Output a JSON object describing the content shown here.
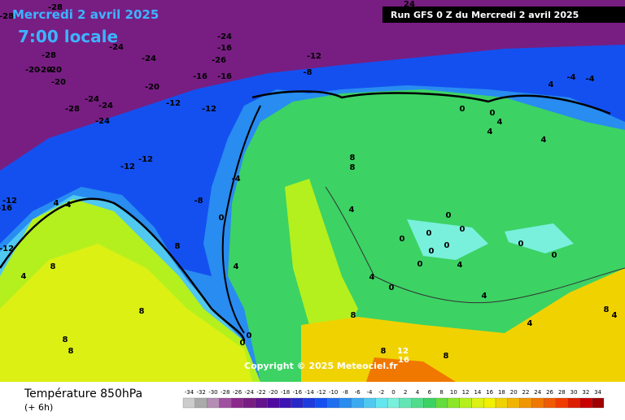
{
  "header": {
    "date": "Mercredi 2 avril 2025",
    "time": "7:00 locale",
    "run": "Run GFS 0 Z du Mercredi 2 avril 2025"
  },
  "copyright": "Copyright © 2025 Meteociel.fr",
  "footer": {
    "title": "Température 850hPa",
    "step": "(+ 6h)"
  },
  "legend": {
    "labels": [
      -34,
      -32,
      -30,
      -28,
      -26,
      -24,
      -22,
      -20,
      -18,
      -16,
      -14,
      -12,
      -10,
      -8,
      -6,
      -4,
      -2,
      0,
      2,
      4,
      6,
      8,
      10,
      12,
      14,
      16,
      18,
      20,
      22,
      24,
      26,
      28,
      30,
      32,
      34
    ],
    "colors": [
      "#cccccc",
      "#aaaaaa",
      "#b48cb4",
      "#a050a0",
      "#8c288c",
      "#781e82",
      "#64148c",
      "#500aa0",
      "#3c14b4",
      "#2828c8",
      "#1e3cdc",
      "#1450f0",
      "#1e6ef0",
      "#288cf0",
      "#3caaf0",
      "#50c8f0",
      "#64e6f0",
      "#78f0dc",
      "#64e6b4",
      "#50dc8c",
      "#3cd264",
      "#64dc3c",
      "#8ce628",
      "#b4f01e",
      "#dcf014",
      "#f0f000",
      "#f0d200",
      "#f0b400",
      "#f09600",
      "#f07800",
      "#f05a00",
      "#f03c00",
      "#dc1e00",
      "#c80000",
      "#a00000"
    ]
  },
  "contour_labels": [
    -28,
    -28,
    -28,
    -20,
    -20,
    -20,
    -20,
    -24,
    -24,
    -24,
    -16,
    -26,
    -16,
    -16,
    -12,
    -8,
    -20,
    -28,
    -24,
    -24,
    -24,
    -12,
    -12,
    -12,
    -12,
    -8,
    -4,
    0,
    4,
    0,
    0,
    -12,
    -16,
    -12,
    4,
    4,
    8,
    4,
    8,
    8,
    8,
    8,
    8,
    8,
    4,
    4,
    0,
    8,
    8,
    12,
    16,
    8,
    4,
    4,
    8,
    4,
    0,
    0,
    0,
    0,
    0,
    0,
    0,
    0,
    0,
    4,
    0,
    0,
    4,
    4,
    4,
    4,
    -4,
    -4,
    24
  ]
}
